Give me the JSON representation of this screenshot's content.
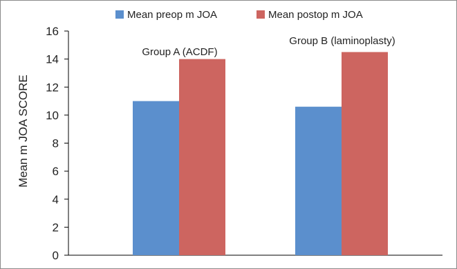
{
  "chart_data": {
    "type": "bar",
    "title": "",
    "xlabel": "",
    "ylabel": "Mean m JOA SCORE",
    "ylim": [
      0,
      16
    ],
    "yticks": [
      0,
      2,
      4,
      6,
      8,
      10,
      12,
      14,
      16
    ],
    "categories": [
      "Group A (ACDF)",
      "Group B (laminoplasty)"
    ],
    "series": [
      {
        "name": "Mean preop m JOA",
        "color": "#5b8fcd",
        "values": [
          11.0,
          10.6
        ]
      },
      {
        "name": "Mean postop m JOA",
        "color": "#cd6560",
        "values": [
          14.0,
          14.5
        ]
      }
    ],
    "legend": "top-center",
    "grid": false
  }
}
